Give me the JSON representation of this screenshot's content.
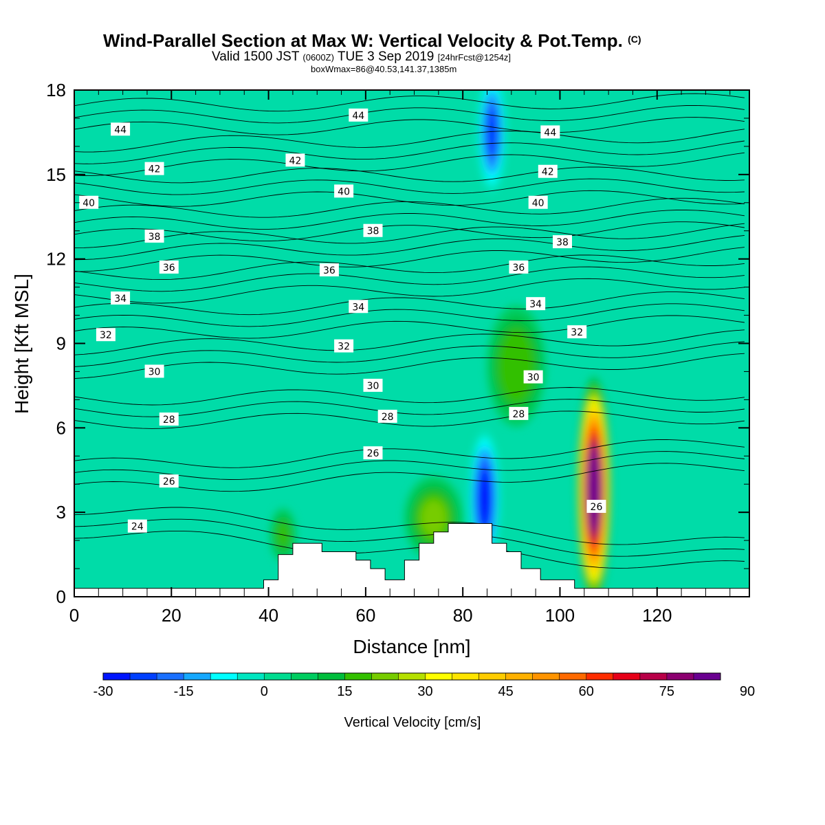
{
  "header": {
    "title": "Wind-Parallel Section at Max W: Vertical Velocity & Pot.Temp.",
    "copyright": "(C)",
    "valid_prefix": "Valid 1500 JST",
    "valid_z": "(0600Z)",
    "valid_date": "TUE 3 Sep 2019",
    "forecast": "[24hrFcst@1254z]",
    "boxwmax": "boxWmax=86@40.53,141.37,1385m"
  },
  "chart_data": {
    "type": "heatmap",
    "title": "Wind-Parallel Section at Max W: Vertical Velocity & Pot.Temp.",
    "xlabel": "Distance [nm]",
    "ylabel": "Height [Kft MSL]",
    "xlim": [
      0,
      139
    ],
    "ylim": [
      0,
      18
    ],
    "x_ticks": [
      "0",
      "20",
      "40",
      "60",
      "80",
      "100",
      "120"
    ],
    "y_ticks": [
      "0",
      "3",
      "6",
      "9",
      "12",
      "15",
      "18"
    ],
    "colorbar": {
      "label": "Vertical Velocity [cm/s]",
      "tick_labels": [
        "-30",
        "-15",
        "0",
        "15",
        "30",
        "45",
        "60",
        "75",
        "90"
      ],
      "levels_start": -30,
      "level_step": 5,
      "colors": [
        "#0015ff",
        "#0040ff",
        "#1a70ff",
        "#15a8ff",
        "#00ffff",
        "#00e6c0",
        "#00dc90",
        "#00cd60",
        "#00bd3c",
        "#33c000",
        "#77cc00",
        "#b5e000",
        "#ffff00",
        "#ffe500",
        "#ffcc00",
        "#ffb100",
        "#ff9400",
        "#ff6a00",
        "#ff2d00",
        "#e60018",
        "#b80048",
        "#8c0070",
        "#6a0090"
      ]
    },
    "terrain_profile": {
      "x": [
        0,
        39,
        39,
        42,
        42,
        45,
        45,
        51,
        51,
        58,
        58,
        61,
        61,
        64,
        64,
        68,
        68,
        71,
        71,
        74,
        74,
        77,
        77,
        86,
        86,
        89,
        89,
        92,
        92,
        96,
        96,
        103,
        103,
        139
      ],
      "y": [
        0.3,
        0.3,
        0.6,
        0.6,
        1.5,
        1.5,
        1.9,
        1.9,
        1.6,
        1.6,
        1.3,
        1.3,
        1.0,
        1.0,
        0.6,
        0.6,
        1.3,
        1.3,
        1.9,
        1.9,
        2.3,
        2.3,
        2.6,
        2.6,
        1.9,
        1.9,
        1.6,
        1.6,
        1.0,
        1.0,
        0.6,
        0.6,
        0.3,
        0.3
      ]
    },
    "w_features": [
      {
        "x": 107,
        "y": 3.8,
        "rx": 2.6,
        "ry": 3.0,
        "value": 86
      },
      {
        "x": 84.5,
        "y": 3.5,
        "rx": 2.4,
        "ry": 1.8,
        "value": -28
      },
      {
        "x": 86,
        "y": 16.5,
        "rx": 2.2,
        "ry": 1.6,
        "value": -22
      },
      {
        "x": 91,
        "y": 8.2,
        "rx": 4.5,
        "ry": 1.6,
        "value": 17
      },
      {
        "x": 74,
        "y": 2.8,
        "rx": 4.5,
        "ry": 1.1,
        "value": 20
      },
      {
        "x": 43,
        "y": 2.2,
        "rx": 2.0,
        "ry": 0.7,
        "value": 15
      }
    ],
    "isentropes": [
      {
        "theta": 24,
        "y_left": 2.3,
        "y_right": 1.0
      },
      {
        "theta": 26,
        "y_left": 3.8,
        "y_right": 4.6
      },
      {
        "theta": 28,
        "y_left": 6.2,
        "y_right": 6.4
      },
      {
        "theta": 30,
        "y_left": 8.0,
        "y_right": 8.4
      },
      {
        "theta": 32,
        "y_left": 9.3,
        "y_right": 9.8
      },
      {
        "theta": 34,
        "y_left": 10.6,
        "y_right": 11.2
      },
      {
        "theta": 36,
        "y_left": 11.8,
        "y_right": 12.2
      },
      {
        "theta": 38,
        "y_left": 12.8,
        "y_right": 13.1
      },
      {
        "theta": 40,
        "y_left": 14.1,
        "y_right": 14.2
      },
      {
        "theta": 42,
        "y_left": 15.2,
        "y_right": 15.6
      },
      {
        "theta": 44,
        "y_left": 16.6,
        "y_right": 16.8
      }
    ],
    "isentrope_labels": [
      {
        "text": "44",
        "x": 9.5,
        "y": 16.6
      },
      {
        "text": "44",
        "x": 58.5,
        "y": 17.1
      },
      {
        "text": "44",
        "x": 98,
        "y": 16.5
      },
      {
        "text": "42",
        "x": 16.5,
        "y": 15.2
      },
      {
        "text": "42",
        "x": 45.5,
        "y": 15.5
      },
      {
        "text": "42",
        "x": 97.5,
        "y": 15.1
      },
      {
        "text": "40",
        "x": 3,
        "y": 14.0
      },
      {
        "text": "40",
        "x": 55.5,
        "y": 14.4
      },
      {
        "text": "40",
        "x": 95.5,
        "y": 14.0
      },
      {
        "text": "38",
        "x": 16.5,
        "y": 12.8
      },
      {
        "text": "38",
        "x": 61.5,
        "y": 13.0
      },
      {
        "text": "38",
        "x": 100.5,
        "y": 12.6
      },
      {
        "text": "36",
        "x": 19.5,
        "y": 11.7
      },
      {
        "text": "36",
        "x": 52.5,
        "y": 11.6
      },
      {
        "text": "36",
        "x": 91.5,
        "y": 11.7
      },
      {
        "text": "34",
        "x": 9.5,
        "y": 10.6
      },
      {
        "text": "34",
        "x": 58.5,
        "y": 10.3
      },
      {
        "text": "34",
        "x": 95,
        "y": 10.4
      },
      {
        "text": "32",
        "x": 6.5,
        "y": 9.3
      },
      {
        "text": "32",
        "x": 55.5,
        "y": 8.9
      },
      {
        "text": "32",
        "x": 103.5,
        "y": 9.4
      },
      {
        "text": "30",
        "x": 16.5,
        "y": 8.0
      },
      {
        "text": "30",
        "x": 61.5,
        "y": 7.5
      },
      {
        "text": "30",
        "x": 94.5,
        "y": 7.8
      },
      {
        "text": "28",
        "x": 19.5,
        "y": 6.3
      },
      {
        "text": "28",
        "x": 64.5,
        "y": 6.4
      },
      {
        "text": "28",
        "x": 91.5,
        "y": 6.5
      },
      {
        "text": "26",
        "x": 19.5,
        "y": 4.1
      },
      {
        "text": "26",
        "x": 61.5,
        "y": 5.1
      },
      {
        "text": "26",
        "x": 107.5,
        "y": 3.2
      },
      {
        "text": "24",
        "x": 13,
        "y": 2.5
      }
    ]
  }
}
